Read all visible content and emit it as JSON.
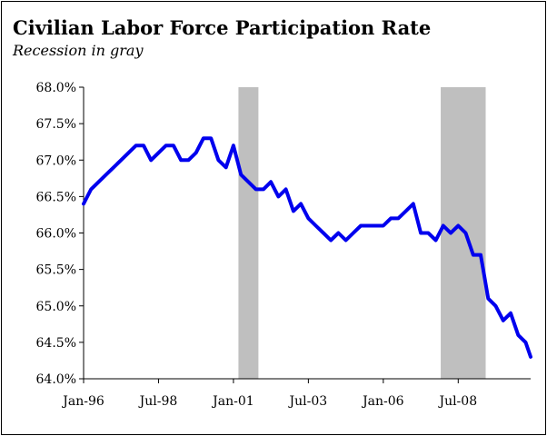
{
  "chart_data": {
    "type": "line",
    "title": "Civilian Labor Force Participation Rate",
    "subtitle": "Recession in gray",
    "xlabel": "",
    "ylabel": "",
    "ylim": [
      64.0,
      68.0
    ],
    "y_ticks": [
      "68.0%",
      "67.5%",
      "67.0%",
      "66.5%",
      "66.0%",
      "65.5%",
      "65.0%",
      "64.5%",
      "64.0%"
    ],
    "y_tick_values": [
      68.0,
      67.5,
      67.0,
      66.5,
      66.0,
      65.5,
      65.0,
      64.5,
      64.0
    ],
    "x_ticks": [
      "Jan-96",
      "Jul-98",
      "Jan-01",
      "Jul-03",
      "Jan-06",
      "Jul-08"
    ],
    "x_tick_dates": [
      "1996-01",
      "1998-07",
      "2001-01",
      "2003-07",
      "2006-01",
      "2008-07"
    ],
    "x_range": [
      "1996-01",
      "2010-12"
    ],
    "recessions": [
      {
        "start": "2001-03",
        "end": "2001-11"
      },
      {
        "start": "2007-12",
        "end": "2009-06"
      }
    ],
    "series": [
      {
        "color": "#0000ee",
        "x": [
          "1996-01",
          "1996-04",
          "1996-07",
          "1996-10",
          "1997-01",
          "1997-04",
          "1997-07",
          "1997-10",
          "1998-01",
          "1998-04",
          "1998-07",
          "1998-10",
          "1999-01",
          "1999-04",
          "1999-07",
          "1999-10",
          "2000-01",
          "2000-04",
          "2000-07",
          "2000-10",
          "2001-01",
          "2001-04",
          "2001-07",
          "2001-10",
          "2002-01",
          "2002-04",
          "2002-07",
          "2002-10",
          "2003-01",
          "2003-04",
          "2003-07",
          "2003-10",
          "2004-01",
          "2004-04",
          "2004-07",
          "2004-10",
          "2005-01",
          "2005-04",
          "2005-07",
          "2005-10",
          "2006-01",
          "2006-04",
          "2006-07",
          "2006-10",
          "2007-01",
          "2007-04",
          "2007-07",
          "2007-10",
          "2008-01",
          "2008-04",
          "2008-07",
          "2008-10",
          "2009-01",
          "2009-04",
          "2009-07",
          "2009-10",
          "2010-01",
          "2010-04",
          "2010-07",
          "2010-10",
          "2010-12"
        ],
        "values": [
          66.4,
          66.6,
          66.7,
          66.8,
          66.9,
          67.0,
          67.1,
          67.2,
          67.2,
          67.0,
          67.1,
          67.2,
          67.2,
          67.0,
          67.0,
          67.1,
          67.3,
          67.3,
          67.0,
          66.9,
          67.2,
          66.8,
          66.7,
          66.6,
          66.6,
          66.7,
          66.5,
          66.6,
          66.3,
          66.4,
          66.2,
          66.1,
          66.0,
          65.9,
          66.0,
          65.9,
          66.0,
          66.1,
          66.1,
          66.1,
          66.1,
          66.2,
          66.2,
          66.3,
          66.4,
          66.0,
          66.0,
          65.9,
          66.1,
          66.0,
          66.1,
          66.0,
          65.7,
          65.7,
          65.1,
          65.0,
          64.8,
          64.9,
          64.6,
          64.5,
          64.3
        ]
      }
    ]
  }
}
